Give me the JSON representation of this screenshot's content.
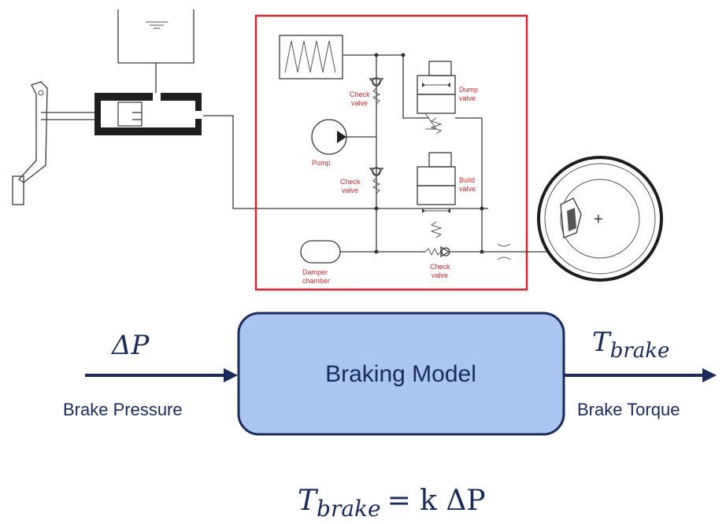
{
  "hydraulic": {
    "labels": {
      "check_valve_top": [
        "Check",
        "valve"
      ],
      "pump": "Pump",
      "check_valve_mid": [
        "Check",
        "valve"
      ],
      "dump_valve": [
        "Dump",
        "valve"
      ],
      "build_valve": [
        "Build",
        "valve"
      ],
      "damper_chamber": [
        "Damper",
        "chamber"
      ],
      "check_valve_bottom": [
        "Check",
        "valve"
      ]
    },
    "wheel_center_mark": "+"
  },
  "model": {
    "box_label": "Braking Model",
    "input_symbol": "ΔP",
    "input_label": "Brake Pressure",
    "output_symbol": "T",
    "output_subscript": "brake",
    "output_label": "Brake Torque"
  },
  "equation": {
    "lhs": "T",
    "lhs_subscript": "brake",
    "rhs": "= k ΔP"
  },
  "colors": {
    "box_fill": "#a9c5f0",
    "box_stroke": "#1a2a5c",
    "arrow": "#1a2a5c",
    "highlight_frame": "#d9262c",
    "text": "#1a2a5c"
  }
}
